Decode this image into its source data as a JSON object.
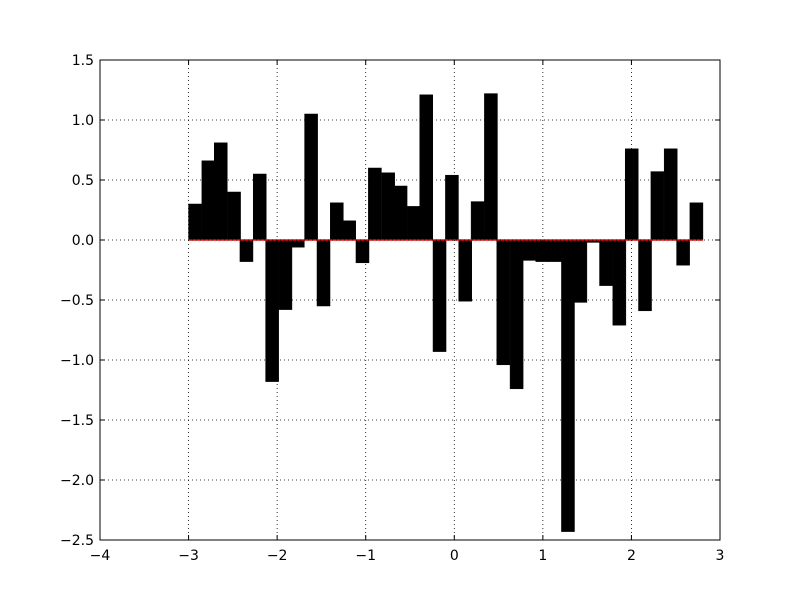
{
  "chart_data": {
    "type": "bar",
    "title": "",
    "xlabel": "",
    "ylabel": "",
    "xlim": [
      -4,
      3
    ],
    "ylim": [
      -2.5,
      1.5
    ],
    "grid": true,
    "bar_width": 0.147,
    "x_ticks": [
      "−4",
      "−3",
      "−2",
      "−1",
      "0",
      "1",
      "2",
      "3"
    ],
    "y_ticks": [
      "1.5",
      "1.0",
      "0.5",
      "0.0",
      "−0.5",
      "−1.0",
      "−1.5",
      "−2.0",
      "−2.5"
    ],
    "baseline": 0,
    "baseline_color": "#ff0000",
    "bar_color": "#000000",
    "x": [
      -3.0,
      -2.85,
      -2.71,
      -2.56,
      -2.42,
      -2.27,
      -2.13,
      -1.98,
      -1.84,
      -1.69,
      -1.55,
      -1.4,
      -1.26,
      -1.11,
      -0.97,
      -0.82,
      -0.68,
      -0.53,
      -0.39,
      -0.24,
      -0.1,
      0.05,
      0.19,
      0.34,
      0.48,
      0.63,
      0.77,
      0.92,
      1.06,
      1.21,
      1.35,
      1.5,
      1.64,
      1.79,
      1.93,
      2.08,
      2.22,
      2.37,
      2.51,
      2.66
    ],
    "values": [
      0.3,
      0.66,
      0.81,
      0.4,
      -0.18,
      0.55,
      -1.18,
      -0.58,
      -0.06,
      1.05,
      -0.55,
      0.31,
      0.16,
      -0.19,
      0.6,
      0.56,
      0.45,
      0.28,
      1.21,
      -0.93,
      0.54,
      -0.51,
      0.32,
      1.22,
      -1.04,
      -1.24,
      -0.17,
      -0.18,
      -0.18,
      -2.43,
      -0.52,
      -0.02,
      -0.38,
      -0.71,
      0.76,
      -0.59,
      0.57,
      0.76,
      -0.21,
      0.31
    ]
  }
}
